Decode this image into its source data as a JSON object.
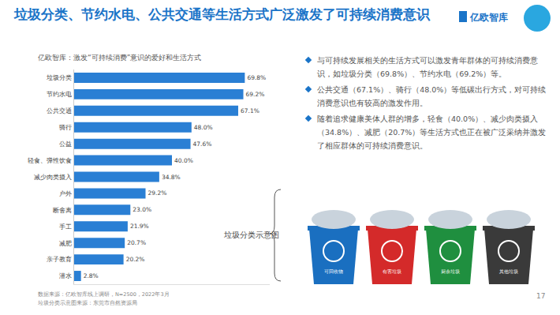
{
  "chart_data": {
    "type": "bar",
    "orientation": "horizontal",
    "title": "亿欧智库：激发“可持续消费”意识的爱好和生活方式",
    "categories": [
      "垃圾分类",
      "节约水电",
      "公共交通",
      "骑行",
      "公益",
      "轻食、弹性饮食",
      "减少肉类摄入",
      "户外",
      "断舍离",
      "手工",
      "减肥",
      "亲子教育",
      "潜水"
    ],
    "values": [
      69.8,
      69.2,
      67.1,
      48.0,
      47.6,
      40.0,
      34.8,
      29.2,
      23.0,
      21.9,
      20.7,
      20.2,
      2.8
    ],
    "value_labels": [
      "69.8%",
      "69.2%",
      "67.1%",
      "48.0%",
      "47.6%",
      "40.0%",
      "34.8%",
      "29.2%",
      "23.0%",
      "21.9%",
      "20.7%",
      "20.2%",
      "2.8%"
    ],
    "color": "#2a7fd4",
    "xlim": [
      0,
      80
    ],
    "data_labels": true,
    "tick_labels": "y",
    "grid": false
  },
  "page": {
    "title": "垃圾分类、节约水电、公共交通等生活方式广泛激发了可持续消费意识",
    "logo": "亿欧智库",
    "bullets": [
      "与可持续发展相关的生活方式可以激发青年群体的可持续消费意识，如垃圾分类（69.8%）、节约水电（69.2%）等。",
      "公共交通（67.1%）、骑行（48.0%）等低碳出行方式，对可持续消费意识也有较高的激发作用。",
      "随着追求健康美体人群的增多，轻食（40.0%）、减少肉类摄入（34.8%）、减肥（20.7%）等生活方式也正在被广泛采纳并激发了相应群体的可持续消费意识。"
    ],
    "image_caption": "垃圾分类示意图",
    "bins": [
      {
        "label": "可回收物",
        "color": "#1a6fc0"
      },
      {
        "label": "有害垃圾",
        "color": "#d42a2a"
      },
      {
        "label": "厨余垃圾",
        "color": "#1f8f3f"
      },
      {
        "label": "其他垃圾",
        "color": "#3a3a3a"
      }
    ],
    "sources": [
      "数据来源：亿欧智库线上调研，N=2500，2022年3月",
      "垃圾分类示意图来源：东莞市自然资源局"
    ],
    "page_number": "17"
  }
}
